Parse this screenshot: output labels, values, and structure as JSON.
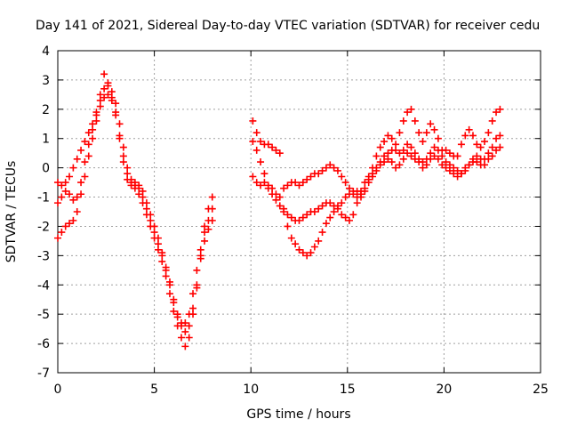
{
  "chart_data": {
    "type": "scatter",
    "title": "Day 141 of 2021, Sidereal Day-to-day VTEC variation (SDTVAR) for receiver cedu",
    "xlabel": "GPS time / hours",
    "ylabel": "SDTVAR / TECUs",
    "xlim": [
      0,
      25
    ],
    "ylim": [
      -7,
      4
    ],
    "x_ticks": [
      0,
      5,
      10,
      15,
      20,
      25
    ],
    "y_ticks": [
      -7,
      -6,
      -5,
      -4,
      -3,
      -2,
      -1,
      0,
      1,
      2,
      3,
      4
    ],
    "grid": true,
    "marker": "+",
    "color": "#ff0000",
    "series": [
      {
        "x": [
          0.0,
          0.2,
          0.4,
          0.6,
          0.8,
          1.0,
          1.2,
          1.4,
          1.6,
          1.8,
          2.0,
          2.2,
          2.4,
          2.6,
          2.8,
          3.0,
          3.2,
          3.4,
          3.6,
          3.8,
          4.0,
          4.2,
          4.4,
          4.6,
          4.8,
          5.0,
          5.2,
          5.4,
          5.6,
          5.8,
          6.0,
          6.2,
          6.4,
          6.6,
          6.8,
          7.0,
          7.2,
          7.4,
          7.6,
          7.8,
          8.0
        ],
        "y": [
          -2.4,
          -2.2,
          -2.0,
          -1.9,
          -1.8,
          -1.5,
          -0.9,
          -0.3,
          0.4,
          1.0,
          1.6,
          2.1,
          2.4,
          2.5,
          2.3,
          1.8,
          1.1,
          0.4,
          -0.2,
          -0.5,
          -0.6,
          -0.7,
          -1.0,
          -1.4,
          -1.8,
          -2.2,
          -2.6,
          -3.0,
          -3.5,
          -4.0,
          -4.6,
          -5.1,
          -5.4,
          -5.6,
          -5.4,
          -4.8,
          -4.0,
          -3.1,
          -2.5,
          -2.1,
          -1.8
        ]
      },
      {
        "x": [
          0.0,
          0.2,
          0.4,
          0.6,
          0.8,
          1.0,
          1.2,
          1.4,
          1.6,
          1.8,
          2.0,
          2.2,
          2.4,
          2.6,
          2.8,
          3.0,
          3.2,
          3.4,
          3.6,
          3.8,
          4.0,
          4.2,
          4.4,
          4.6,
          4.8,
          5.0,
          5.2,
          5.4,
          5.6,
          5.8,
          6.0,
          6.2,
          6.4,
          6.6,
          6.8,
          7.0,
          7.2,
          7.4,
          7.6,
          7.8,
          8.0
        ],
        "y": [
          -0.5,
          -0.6,
          -0.5,
          -0.3,
          0.0,
          0.3,
          0.6,
          0.9,
          1.2,
          1.5,
          1.9,
          2.3,
          2.7,
          2.8,
          2.6,
          2.2,
          1.5,
          0.7,
          0.0,
          -0.4,
          -0.5,
          -0.6,
          -0.8,
          -1.2,
          -1.6,
          -2.0,
          -2.4,
          -2.9,
          -3.4,
          -3.9,
          -4.5,
          -5.0,
          -5.3,
          -5.3,
          -5.0,
          -4.3,
          -3.5,
          -2.8,
          -2.2,
          -1.8,
          -1.4
        ]
      },
      {
        "x": [
          0.0,
          0.2,
          0.4,
          0.6,
          0.8,
          1.0,
          1.2,
          1.4,
          1.6,
          1.8,
          2.0,
          2.2,
          2.4,
          2.6,
          2.8,
          3.0,
          3.2,
          3.4,
          3.6,
          3.8,
          4.0,
          4.2,
          4.4,
          4.6,
          4.8,
          5.0,
          5.2,
          5.4,
          5.6,
          5.8,
          6.0,
          6.2,
          6.4,
          6.6,
          6.8,
          7.0,
          7.2,
          7.4,
          7.6,
          7.8,
          8.0
        ],
        "y": [
          -1.2,
          -1.0,
          -0.8,
          -0.9,
          -1.1,
          -1.0,
          -0.5,
          0.2,
          0.8,
          1.3,
          1.8,
          2.5,
          3.2,
          2.9,
          2.4,
          1.9,
          1.0,
          0.2,
          -0.4,
          -0.6,
          -0.7,
          -0.9,
          -1.2,
          -1.6,
          -2.0,
          -2.4,
          -2.8,
          -3.2,
          -3.7,
          -4.3,
          -4.9,
          -5.4,
          -5.8,
          -6.1,
          -5.8,
          -5.0,
          -4.1,
          -3.0,
          -2.0,
          -1.4,
          -1.0
        ]
      },
      {
        "x": [
          10.1,
          10.3,
          10.5,
          10.7,
          10.9,
          11.1,
          11.3,
          11.5,
          11.7,
          11.9,
          12.1,
          12.3,
          12.5,
          12.7,
          12.9,
          13.1,
          13.3,
          13.5,
          13.7,
          13.9,
          14.1,
          14.3,
          14.5,
          14.7,
          14.9,
          15.1,
          15.3,
          15.5,
          15.7,
          15.9,
          16.1,
          16.3,
          16.5,
          16.7,
          16.9,
          17.1,
          17.3,
          17.5,
          17.7,
          17.9,
          18.1,
          18.3,
          18.5,
          18.7,
          18.9,
          19.1,
          19.3,
          19.5,
          19.7,
          19.9,
          20.1,
          20.3,
          20.5,
          20.7,
          20.9,
          21.1,
          21.3,
          21.5,
          21.7,
          21.9,
          22.1,
          22.3,
          22.5,
          22.7,
          22.9
        ],
        "y": [
          1.6,
          1.2,
          0.9,
          0.8,
          0.8,
          0.7,
          0.6,
          0.5,
          -0.7,
          -0.6,
          -0.5,
          -0.5,
          -0.6,
          -0.5,
          -0.4,
          -0.3,
          -0.2,
          -0.2,
          -0.1,
          0.0,
          0.1,
          0.0,
          -0.1,
          -0.3,
          -0.5,
          -0.7,
          -0.9,
          -1.0,
          -1.0,
          -0.8,
          -0.4,
          0.0,
          0.4,
          0.7,
          0.9,
          1.1,
          1.0,
          0.8,
          1.2,
          1.6,
          1.9,
          2.0,
          1.6,
          1.2,
          0.9,
          1.2,
          1.5,
          1.3,
          1.0,
          0.6,
          0.6,
          0.5,
          0.4,
          0.4,
          0.8,
          1.1,
          1.3,
          1.1,
          0.8,
          0.7,
          0.9,
          1.2,
          1.6,
          1.9,
          2.0
        ]
      },
      {
        "x": [
          10.1,
          10.3,
          10.5,
          10.7,
          10.9,
          11.1,
          11.3,
          11.5,
          11.7,
          11.9,
          12.1,
          12.3,
          12.5,
          12.7,
          12.9,
          13.1,
          13.3,
          13.5,
          13.7,
          13.9,
          14.1,
          14.3,
          14.5,
          14.7,
          14.9,
          15.1,
          15.3,
          15.5,
          15.7,
          15.9,
          16.1,
          16.3,
          16.5,
          16.7,
          16.9,
          17.1,
          17.3,
          17.5,
          17.7,
          17.9,
          18.1,
          18.3,
          18.5,
          18.7,
          18.9,
          19.1,
          19.3,
          19.5,
          19.7,
          19.9,
          20.1,
          20.3,
          20.5,
          20.7,
          20.9,
          21.1,
          21.3,
          21.5,
          21.7,
          21.9,
          22.1,
          22.3,
          22.5,
          22.7,
          22.9
        ],
        "y": [
          -0.3,
          -0.5,
          -0.6,
          -0.5,
          -0.7,
          -0.9,
          -1.1,
          -1.3,
          -1.5,
          -1.6,
          -1.7,
          -1.8,
          -1.8,
          -1.7,
          -1.6,
          -1.5,
          -1.5,
          -1.4,
          -1.3,
          -1.2,
          -1.2,
          -1.3,
          -1.4,
          -1.6,
          -1.7,
          -1.8,
          -1.6,
          -1.2,
          -0.8,
          -0.5,
          -0.3,
          -0.2,
          0.0,
          0.2,
          0.4,
          0.5,
          0.6,
          0.6,
          0.5,
          0.6,
          0.8,
          0.7,
          0.5,
          0.3,
          0.2,
          0.3,
          0.5,
          0.7,
          0.6,
          0.4,
          0.2,
          0.1,
          0.0,
          -0.1,
          -0.2,
          -0.1,
          0.1,
          0.3,
          0.4,
          0.3,
          0.3,
          0.5,
          0.7,
          1.0,
          1.1
        ]
      },
      {
        "x": [
          10.1,
          10.3,
          10.5,
          10.7,
          10.9,
          11.1,
          11.3,
          11.5,
          11.7,
          11.9,
          12.1,
          12.3,
          12.5,
          12.7,
          12.9,
          13.1,
          13.3,
          13.5,
          13.7,
          13.9,
          14.1,
          14.3,
          14.5,
          14.7,
          14.9,
          15.1,
          15.3,
          15.5,
          15.7,
          15.9,
          16.1,
          16.3,
          16.5,
          16.7,
          16.9,
          17.1,
          17.3,
          17.5,
          17.7,
          17.9,
          18.1,
          18.3,
          18.5,
          18.7,
          18.9,
          19.1,
          19.3,
          19.5,
          19.7,
          19.9,
          20.1,
          20.3,
          20.5,
          20.7,
          20.9,
          21.1,
          21.3,
          21.5,
          21.7,
          21.9,
          22.1,
          22.3,
          22.5,
          22.7,
          22.9
        ],
        "y": [
          0.9,
          0.6,
          0.2,
          -0.2,
          -0.6,
          -0.7,
          -0.9,
          -1.0,
          -1.4,
          -2.0,
          -2.4,
          -2.6,
          -2.8,
          -2.9,
          -3.0,
          -2.9,
          -2.7,
          -2.5,
          -2.2,
          -1.9,
          -1.7,
          -1.5,
          -1.3,
          -1.2,
          -1.0,
          -0.9,
          -0.8,
          -0.8,
          -0.9,
          -0.7,
          -0.5,
          -0.3,
          -0.1,
          0.1,
          0.2,
          0.3,
          0.2,
          0.0,
          0.1,
          0.3,
          0.5,
          0.4,
          0.3,
          0.2,
          0.0,
          0.1,
          0.3,
          0.4,
          0.3,
          0.1,
          0.0,
          -0.1,
          -0.2,
          -0.3,
          -0.2,
          0.0,
          0.1,
          0.2,
          0.2,
          0.1,
          0.1,
          0.3,
          0.4,
          0.6,
          0.7
        ]
      }
    ]
  }
}
